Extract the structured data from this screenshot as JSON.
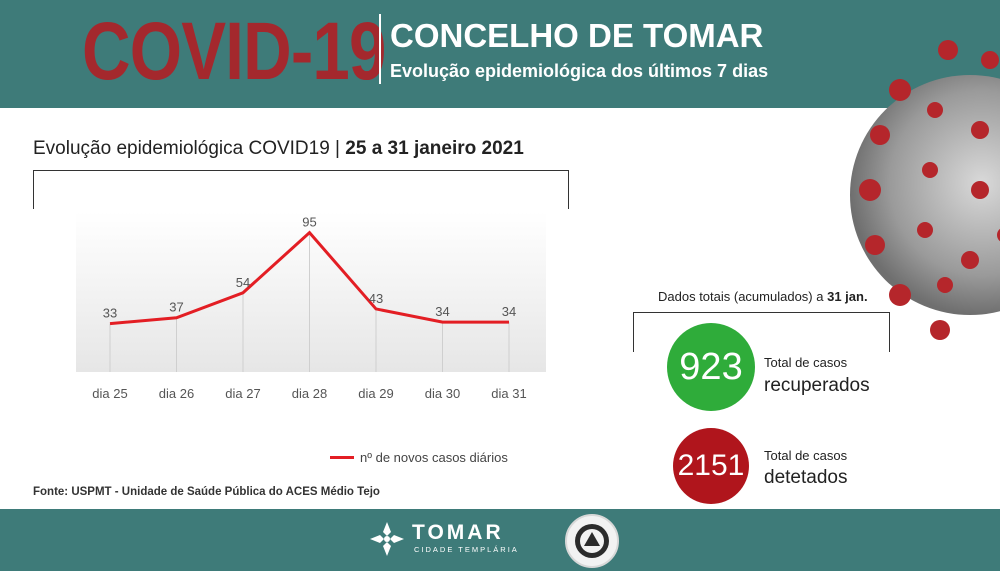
{
  "header": {
    "covid_title": "COVID-19",
    "title": "CONCELHO DE TOMAR",
    "subtitle": "Evolução epidemiológica dos últimos 7 dias"
  },
  "chart_header": {
    "prefix": "Evolução epidemiológica COVID19 | ",
    "period": "25 a 31 janeiro 2021"
  },
  "chart_data": {
    "type": "line",
    "categories": [
      "dia 25",
      "dia 26",
      "dia 27",
      "dia 28",
      "dia 29",
      "dia 30",
      "dia 31"
    ],
    "series": [
      {
        "name": "nº de novos casos diários",
        "values": [
          33,
          37,
          54,
          95,
          43,
          34,
          34
        ],
        "color": "#e31e24"
      }
    ],
    "ylim": [
      0,
      105
    ],
    "grid": "vertical",
    "legend_position": "bottom"
  },
  "legend": {
    "label": "nº de novos casos diários"
  },
  "source": "Fonte: USPMT - Unidade de Saúde Pública do ACES Médio Tejo",
  "totals": {
    "title_prefix": "Dados totais (acumulados) a ",
    "title_date": "31 jan.",
    "recovered": {
      "value": "923",
      "label_small": "Total de casos",
      "label_big": "recuperados",
      "color": "#2fac3a"
    },
    "detected": {
      "value": "2151",
      "label_small": "Total de casos",
      "label_big": "detetados",
      "color": "#b0151c"
    }
  },
  "footer": {
    "logo_text": "TOMAR",
    "logo_sub": "CIDADE TEMPLÁRIA"
  },
  "colors": {
    "teal": "#3e7b79",
    "covid_red": "#a4282d",
    "line_red": "#e31e24"
  }
}
